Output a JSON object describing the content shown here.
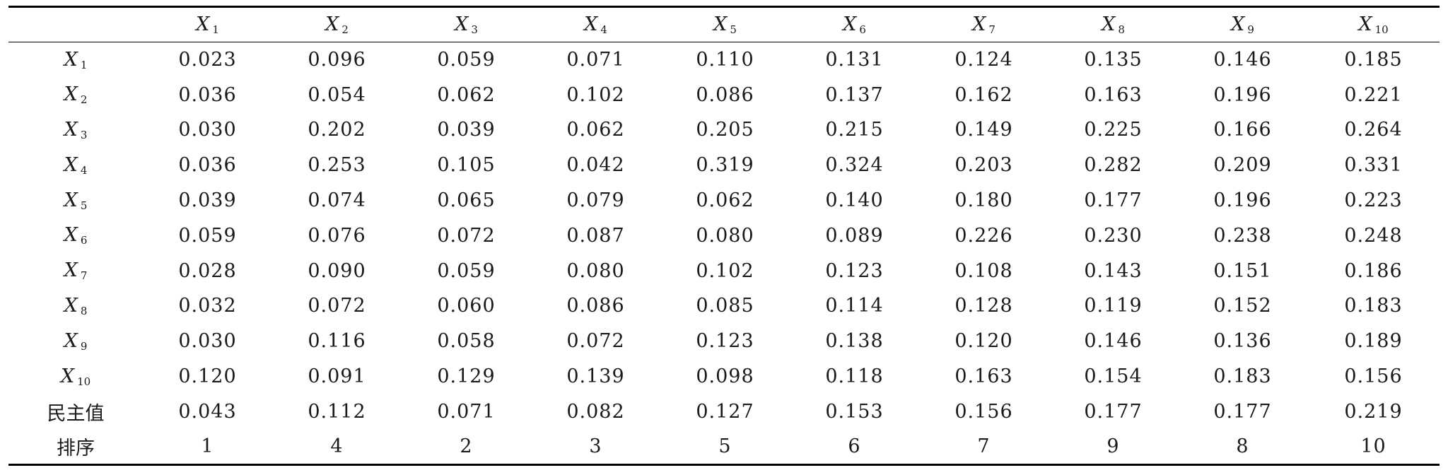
{
  "table": {
    "columns": [
      {
        "sym": "X",
        "sub": "1"
      },
      {
        "sym": "X",
        "sub": "2"
      },
      {
        "sym": "X",
        "sub": "3"
      },
      {
        "sym": "X",
        "sub": "4"
      },
      {
        "sym": "X",
        "sub": "5"
      },
      {
        "sym": "X",
        "sub": "6"
      },
      {
        "sym": "X",
        "sub": "7"
      },
      {
        "sym": "X",
        "sub": "8"
      },
      {
        "sym": "X",
        "sub": "9"
      },
      {
        "sym": "X",
        "sub": "10"
      }
    ],
    "rows": [
      {
        "sym": "X",
        "sub": "1",
        "values": [
          "0.023",
          "0.096",
          "0.059",
          "0.071",
          "0.110",
          "0.131",
          "0.124",
          "0.135",
          "0.146",
          "0.185"
        ]
      },
      {
        "sym": "X",
        "sub": "2",
        "values": [
          "0.036",
          "0.054",
          "0.062",
          "0.102",
          "0.086",
          "0.137",
          "0.162",
          "0.163",
          "0.196",
          "0.221"
        ]
      },
      {
        "sym": "X",
        "sub": "3",
        "values": [
          "0.030",
          "0.202",
          "0.039",
          "0.062",
          "0.205",
          "0.215",
          "0.149",
          "0.225",
          "0.166",
          "0.264"
        ]
      },
      {
        "sym": "X",
        "sub": "4",
        "values": [
          "0.036",
          "0.253",
          "0.105",
          "0.042",
          "0.319",
          "0.324",
          "0.203",
          "0.282",
          "0.209",
          "0.331"
        ]
      },
      {
        "sym": "X",
        "sub": "5",
        "values": [
          "0.039",
          "0.074",
          "0.065",
          "0.079",
          "0.062",
          "0.140",
          "0.180",
          "0.177",
          "0.196",
          "0.223"
        ]
      },
      {
        "sym": "X",
        "sub": "6",
        "values": [
          "0.059",
          "0.076",
          "0.072",
          "0.087",
          "0.080",
          "0.089",
          "0.226",
          "0.230",
          "0.238",
          "0.248"
        ]
      },
      {
        "sym": "X",
        "sub": "7",
        "values": [
          "0.028",
          "0.090",
          "0.059",
          "0.080",
          "0.102",
          "0.123",
          "0.108",
          "0.143",
          "0.151",
          "0.186"
        ]
      },
      {
        "sym": "X",
        "sub": "8",
        "values": [
          "0.032",
          "0.072",
          "0.060",
          "0.086",
          "0.085",
          "0.114",
          "0.128",
          "0.119",
          "0.152",
          "0.183"
        ]
      },
      {
        "sym": "X",
        "sub": "9",
        "values": [
          "0.030",
          "0.116",
          "0.058",
          "0.072",
          "0.123",
          "0.138",
          "0.120",
          "0.146",
          "0.136",
          "0.189"
        ]
      },
      {
        "sym": "X",
        "sub": "10",
        "values": [
          "0.120",
          "0.091",
          "0.129",
          "0.139",
          "0.098",
          "0.118",
          "0.163",
          "0.154",
          "0.183",
          "0.156"
        ]
      },
      {
        "label": "民主值",
        "values": [
          "0.043",
          "0.112",
          "0.071",
          "0.082",
          "0.127",
          "0.153",
          "0.156",
          "0.177",
          "0.177",
          "0.219"
        ]
      },
      {
        "label": "排序",
        "values": [
          "1",
          "4",
          "2",
          "3",
          "5",
          "6",
          "7",
          "9",
          "8",
          "10"
        ]
      }
    ]
  }
}
